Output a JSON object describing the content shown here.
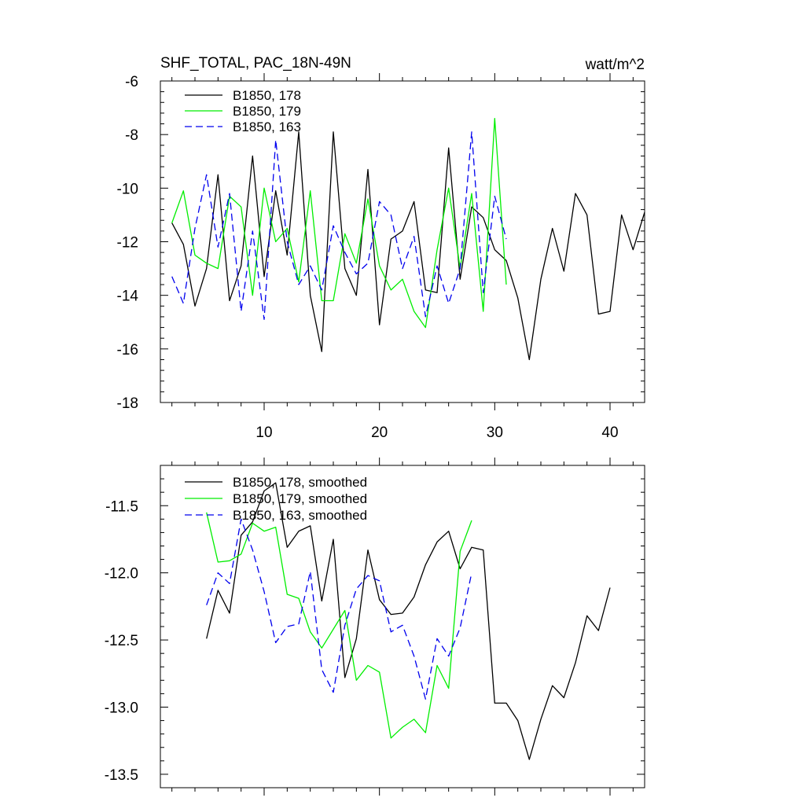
{
  "chart_data": [
    {
      "type": "line",
      "title": "SHF_TOTAL, PAC_18N-49N",
      "units": "watt/m^2",
      "xlim": [
        1,
        43
      ],
      "ylim": [
        -18,
        -6
      ],
      "xticks": [
        10,
        20,
        30,
        40
      ],
      "xtick_labels": [
        "10",
        "20",
        "30",
        "40"
      ],
      "yticks": [
        -18,
        -16,
        -14,
        -12,
        -10,
        -8,
        -6
      ],
      "ytick_labels": [
        "-18",
        "-16",
        "-14",
        "-12",
        "-10",
        "-8",
        "-6"
      ],
      "legend_position": "top-left",
      "series": [
        {
          "name": "B1850, 178",
          "color": "#000000",
          "dash": "solid",
          "x_start": 2,
          "values": [
            -11.3,
            -12.1,
            -14.4,
            -13.0,
            -9.5,
            -14.2,
            -12.9,
            -8.8,
            -13.3,
            -10.1,
            -12.5,
            -7.9,
            -14.0,
            -16.1,
            -7.9,
            -13.0,
            -14.0,
            -9.3,
            -15.1,
            -11.9,
            -11.6,
            -10.5,
            -13.8,
            -13.9,
            -8.5,
            -13.4,
            -10.7,
            -11.1,
            -12.3,
            -12.7,
            -14.1,
            -16.4,
            -13.4,
            -11.5,
            -13.1,
            -10.2,
            -11.0,
            -14.7,
            -14.6,
            -11.0,
            -12.3,
            -10.9
          ]
        },
        {
          "name": "B1850, 179",
          "color": "#00ee00",
          "dash": "solid",
          "x_start": 2,
          "values": [
            -11.3,
            -10.1,
            -12.5,
            -12.8,
            -13.0,
            -10.3,
            -10.7,
            -14.0,
            -10.0,
            -12.0,
            -11.5,
            -13.5,
            -10.1,
            -14.2,
            -14.2,
            -11.7,
            -12.8,
            -10.4,
            -12.9,
            -13.8,
            -13.4,
            -14.6,
            -15.2,
            -12.3,
            -10.0,
            -13.0,
            -10.2,
            -14.6,
            -7.4,
            -13.6
          ]
        },
        {
          "name": "B1850, 163",
          "color": "#0000ee",
          "dash": "dashed",
          "x_start": 2,
          "values": [
            -13.3,
            -14.3,
            -11.5,
            -9.5,
            -12.2,
            -10.2,
            -14.6,
            -11.6,
            -14.9,
            -8.2,
            -12.0,
            -13.6,
            -12.9,
            -13.8,
            -11.4,
            -12.4,
            -13.2,
            -12.8,
            -10.5,
            -11.0,
            -13.0,
            -11.8,
            -14.8,
            -12.9,
            -14.3,
            -13.0,
            -7.9,
            -13.9,
            -10.3,
            -11.9
          ]
        }
      ]
    },
    {
      "type": "line",
      "title": "",
      "xlim": [
        1,
        43
      ],
      "ylim": [
        -13.6,
        -11.2
      ],
      "xticks": [
        10,
        20,
        30,
        40
      ],
      "xtick_labels": [],
      "yticks": [
        -13.5,
        -13.0,
        -12.5,
        -12.0,
        -11.5
      ],
      "ytick_labels": [
        "-13.5",
        "-13.0",
        "-12.5",
        "-12.0",
        "-11.5"
      ],
      "legend_position": "top-left",
      "series": [
        {
          "name": "B1850, 178, smoothed",
          "color": "#000000",
          "dash": "solid",
          "x_start": 5,
          "values": [
            -12.49,
            -12.13,
            -12.3,
            -11.72,
            -11.62,
            -11.39,
            -11.33,
            -11.81,
            -11.69,
            -11.65,
            -12.21,
            -11.75,
            -12.78,
            -12.49,
            -11.83,
            -12.2,
            -12.31,
            -12.3,
            -12.18,
            -11.94,
            -11.77,
            -11.69,
            -11.97,
            -11.81,
            -11.83,
            -12.97,
            -12.97,
            -13.1,
            -13.39,
            -13.09,
            -12.84,
            -12.93,
            -12.67,
            -12.32,
            -12.43,
            -12.11
          ]
        },
        {
          "name": "B1850, 179, smoothed",
          "color": "#00ee00",
          "dash": "solid",
          "x_start": 5,
          "values": [
            -11.55,
            -11.92,
            -11.91,
            -11.86,
            -11.63,
            -11.69,
            -11.66,
            -12.16,
            -12.19,
            -12.44,
            -12.56,
            -12.42,
            -12.28,
            -12.8,
            -12.69,
            -12.74,
            -13.23,
            -13.15,
            -13.09,
            -13.19,
            -12.69,
            -12.86,
            -11.84,
            -11.61
          ]
        },
        {
          "name": "B1850, 163, smoothed",
          "color": "#0000ee",
          "dash": "dashed",
          "x_start": 5,
          "values": [
            -12.24,
            -12.0,
            -12.08,
            -11.6,
            -11.83,
            -12.14,
            -12.52,
            -12.4,
            -12.38,
            -11.99,
            -12.72,
            -12.89,
            -12.39,
            -12.12,
            -12.02,
            -12.06,
            -12.44,
            -12.39,
            -12.62,
            -12.94,
            -12.49,
            -12.62,
            -12.41,
            -12.0
          ]
        }
      ]
    }
  ]
}
